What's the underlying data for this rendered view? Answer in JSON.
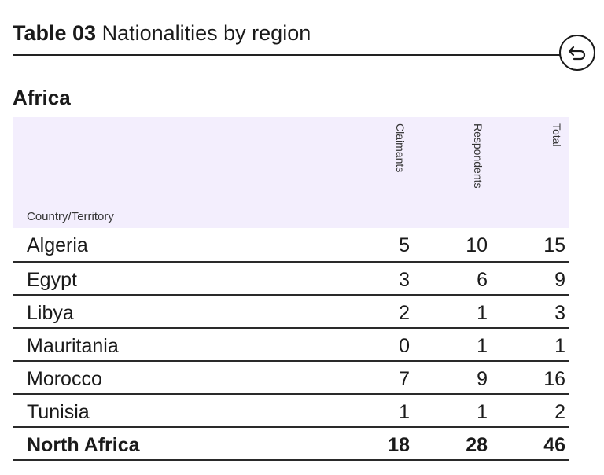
{
  "header": {
    "table_number": "Table 03",
    "title": "Nationalities by region"
  },
  "back_button": {
    "icon": "back-arrow-icon"
  },
  "region": "Africa",
  "table": {
    "columns": {
      "country": "Country/Territory",
      "claimants": "Claimants",
      "respondents": "Respondents",
      "total": "Total"
    },
    "rows": [
      {
        "country": "Algeria",
        "claimants": "5",
        "respondents": "10",
        "total": "15"
      },
      {
        "country": "Egypt",
        "claimants": "3",
        "respondents": "6",
        "total": "9"
      },
      {
        "country": "Libya",
        "claimants": "2",
        "respondents": "1",
        "total": "3"
      },
      {
        "country": "Mauritania",
        "claimants": "0",
        "respondents": "1",
        "total": "1"
      },
      {
        "country": "Morocco",
        "claimants": "7",
        "respondents": "9",
        "total": "16"
      },
      {
        "country": "Tunisia",
        "claimants": "1",
        "respondents": "1",
        "total": "2"
      }
    ],
    "total_row": {
      "country": "North Africa",
      "claimants": "18",
      "respondents": "28",
      "total": "46"
    }
  },
  "colors": {
    "header_bg": "#f3eefd",
    "rule": "#222222"
  }
}
